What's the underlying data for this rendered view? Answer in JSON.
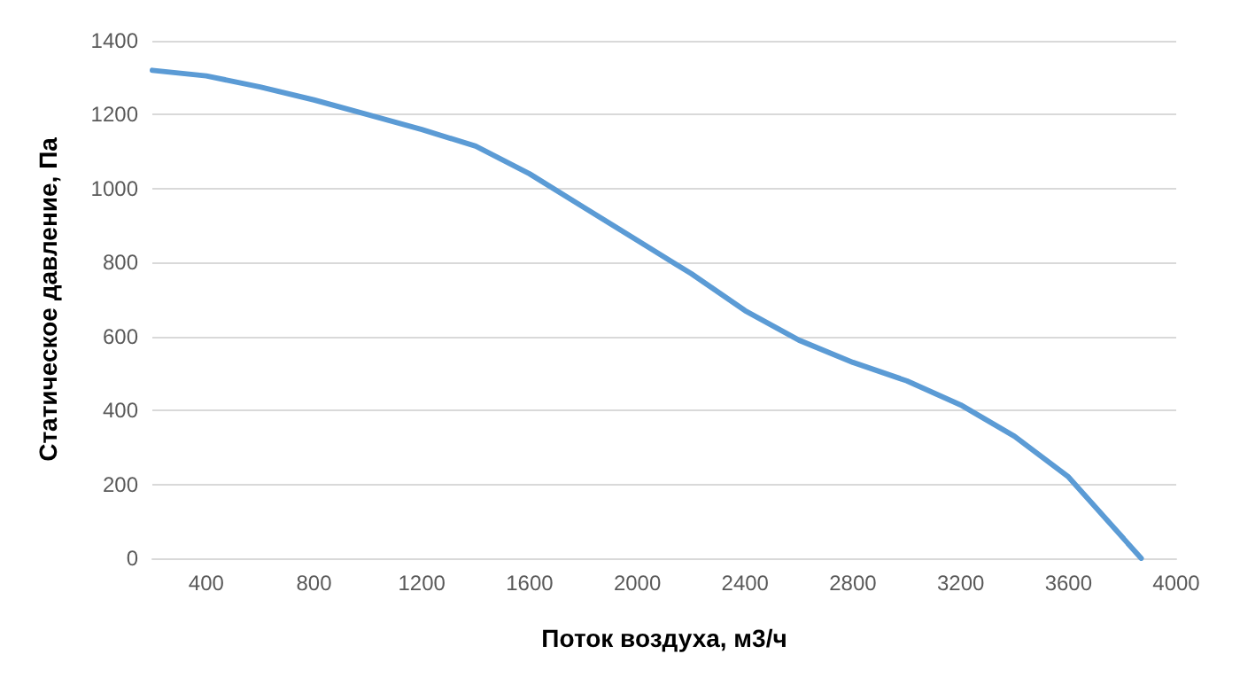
{
  "chart_data": {
    "type": "line",
    "xlabel": "Поток воздуха, м3/ч",
    "ylabel": "Статическое давление, Па",
    "x": [
      200,
      400,
      600,
      800,
      1000,
      1200,
      1400,
      1600,
      1800,
      2000,
      2200,
      2400,
      2600,
      2800,
      3000,
      3200,
      3400,
      3600,
      3870
    ],
    "series": [
      {
        "color": "#5b9bd5",
        "values": [
          1320,
          1305,
          1275,
          1240,
          1200,
          1160,
          1115,
          1040,
          950,
          860,
          770,
          670,
          590,
          530,
          480,
          415,
          330,
          220,
          0
        ]
      }
    ],
    "xlim": [
      200,
      4000
    ],
    "xticks": [
      400,
      800,
      1200,
      1600,
      2000,
      2400,
      2800,
      3200,
      3600,
      4000
    ],
    "ylim": [
      0,
      1400
    ],
    "yticks": [
      0,
      200,
      400,
      600,
      800,
      1000,
      1200,
      1400
    ],
    "grid": "y",
    "marker": "none",
    "line_style": "solid"
  }
}
